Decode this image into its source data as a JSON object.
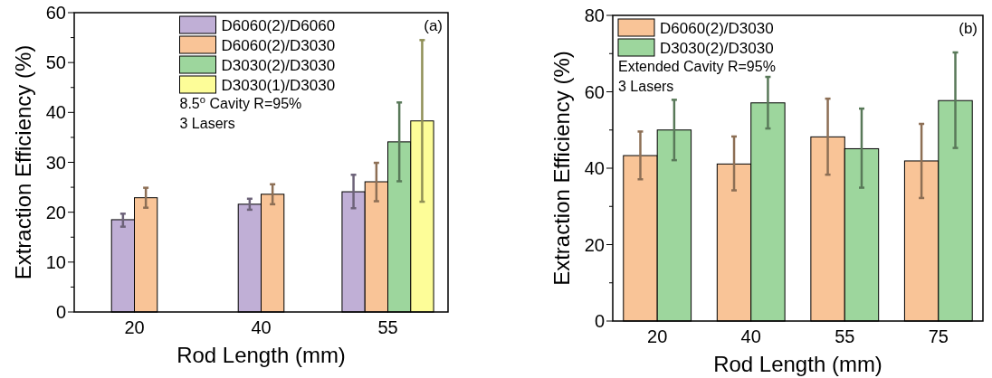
{
  "chart_data": [
    {
      "type": "bar",
      "xlabel": "Rod Length (mm)",
      "ylabel": "Extraction Efficiency (%)",
      "categories": [
        "20",
        "40",
        "55"
      ],
      "series": [
        {
          "name": "D6060(2)/D6060",
          "color": "#c0afd6",
          "values": [
            18.5,
            21.6,
            24.1
          ],
          "errors": [
            [
              17.1,
              19.7
            ],
            [
              20.5,
              22.7
            ],
            [
              20.8,
              27.5
            ]
          ]
        },
        {
          "name": "D6060(2)/D3030",
          "color": "#f9c497",
          "values": [
            22.9,
            23.6,
            26.1
          ],
          "errors": [
            [
              20.9,
              24.9
            ],
            [
              21.6,
              25.6
            ],
            [
              22.2,
              29.9
            ]
          ]
        },
        {
          "name": "D3030(2)/D3030",
          "color": "#9dd69d",
          "values": [
            null,
            null,
            34.1
          ],
          "errors": [
            null,
            null,
            [
              26.2,
              42.0
            ]
          ]
        },
        {
          "name": "D3030(1)/D3030",
          "color": "#fdfd98",
          "values": [
            null,
            null,
            38.3
          ],
          "errors": [
            null,
            null,
            [
              22.1,
              54.5
            ]
          ]
        }
      ],
      "ylim": [
        0,
        60
      ],
      "yticks": [
        0,
        {
          "value": 5,
          "label": null
        },
        10,
        {
          "value": 15,
          "label": null
        },
        20,
        {
          "value": 25,
          "label": null
        },
        30,
        {
          "value": 35,
          "label": null
        },
        40,
        {
          "value": 45,
          "label": null
        },
        50,
        {
          "value": 55,
          "label": null
        },
        60
      ],
      "legend": "top",
      "annotations": [
        "(a)",
        "8.5$^{o}$ Cavity R=95%",
        "3 Lasers"
      ]
    },
    {
      "type": "bar",
      "xlabel": "Rod Length (mm)",
      "ylabel": "Extraction Efficiency (%)",
      "categories": [
        "20",
        "40",
        "55",
        "75"
      ],
      "series": [
        {
          "name": "D6060(2)/D3030",
          "color": "#f9c497",
          "values": [
            43.3,
            41.1,
            48.2,
            41.9
          ],
          "errors": [
            [
              37.1,
              49.6
            ],
            [
              34.2,
              48.3
            ],
            [
              38.3,
              58.2
            ],
            [
              32.2,
              51.6
            ]
          ]
        },
        {
          "name": "D3030(2)/D3030",
          "color": "#9dd69d",
          "values": [
            50.0,
            57.1,
            45.1,
            57.7
          ],
          "errors": [
            [
              42.1,
              57.9
            ],
            [
              50.4,
              63.9
            ],
            [
              34.9,
              55.6
            ],
            [
              45.3,
              70.3
            ]
          ]
        }
      ],
      "ylim": [
        0,
        80
      ],
      "yticks": [
        0,
        {
          "value": 10,
          "label": null
        },
        20,
        {
          "value": 30,
          "label": null
        },
        40,
        {
          "value": 50,
          "label": null
        },
        60,
        {
          "value": 70,
          "label": null
        },
        80
      ],
      "legend": "top left",
      "annotations": [
        "(b)",
        "Extended Cavity R=95%",
        "3 Lasers"
      ]
    }
  ]
}
